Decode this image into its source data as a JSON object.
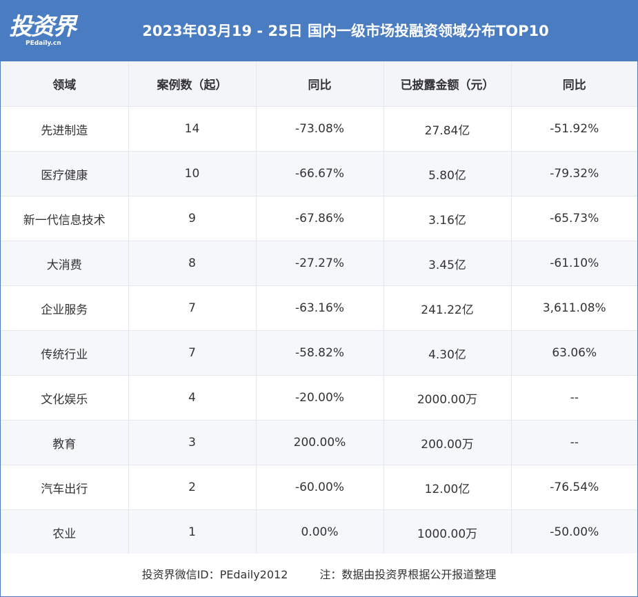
{
  "header": {
    "logo_main": "投资界",
    "logo_sub": "PEdaily.cn",
    "title": "2023年03月19 - 25日 国内一级市场投融资领域分布TOP10"
  },
  "table": {
    "columns": [
      "领域",
      "案例数（起）",
      "同比",
      "已披露金额（元）",
      "同比"
    ],
    "rows": [
      [
        "先进制造",
        "14",
        "-73.08%",
        "27.84亿",
        "-51.92%"
      ],
      [
        "医疗健康",
        "10",
        "-66.67%",
        "5.80亿",
        "-79.32%"
      ],
      [
        "新一代信息技术",
        "9",
        "-67.86%",
        "3.16亿",
        "-65.73%"
      ],
      [
        "大消费",
        "8",
        "-27.27%",
        "3.45亿",
        "-61.10%"
      ],
      [
        "企业服务",
        "7",
        "-63.16%",
        "241.22亿",
        "3,611.08%"
      ],
      [
        "传统行业",
        "7",
        "-58.82%",
        "4.30亿",
        "63.06%"
      ],
      [
        "文化娱乐",
        "4",
        "-20.00%",
        "2000.00万",
        "--"
      ],
      [
        "教育",
        "3",
        "200.00%",
        "200.00万",
        "--"
      ],
      [
        "汽车出行",
        "2",
        "-60.00%",
        "12.00亿",
        "-76.54%"
      ],
      [
        "农业",
        "1",
        "0.00%",
        "1000.00万",
        "-50.00%"
      ]
    ]
  },
  "footer": {
    "wechat": "投资界微信ID：PEdaily2012",
    "note": "注：数据由投资界根据公开报道整理"
  },
  "colors": {
    "header_bg": "#4a7cc1",
    "row_alt_bg": "#f5f7fb",
    "head_bg": "#f3f5f9"
  }
}
